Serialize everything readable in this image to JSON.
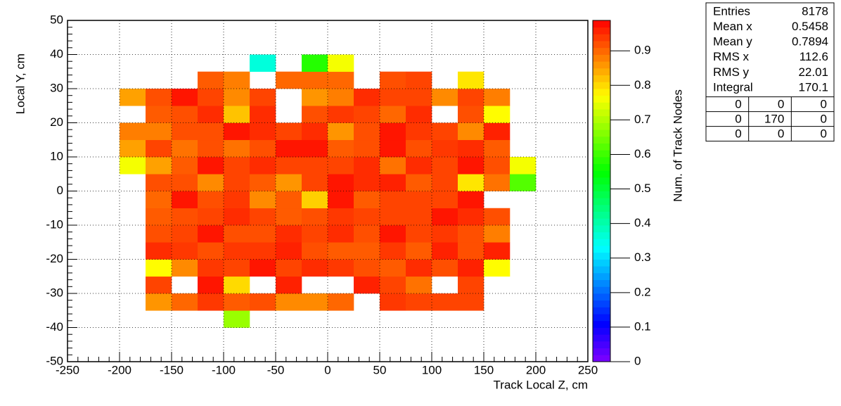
{
  "chart_data": {
    "type": "heatmap",
    "xlabel": "Track Local Z, cm",
    "ylabel": "Local Y, cm",
    "zlabel": "Num. of Track Nodes",
    "xlim": [
      -250,
      250
    ],
    "ylim": [
      -50,
      50
    ],
    "zlim": [
      0,
      0.988
    ],
    "xticks": [
      -250,
      -200,
      -150,
      -100,
      -50,
      0,
      50,
      100,
      150,
      200,
      250
    ],
    "yticks": [
      -50,
      -40,
      -30,
      -20,
      -10,
      0,
      10,
      20,
      30,
      40,
      50
    ],
    "zticks": [
      0,
      0.1,
      0.2,
      0.3,
      0.4,
      0.5,
      0.6,
      0.7,
      0.8,
      0.9
    ],
    "grid": true,
    "colorscale": [
      "#8000ff",
      "#0000ff",
      "#0080ff",
      "#00ffff",
      "#00ff80",
      "#00ff00",
      "#80ff00",
      "#ffff00",
      "#ff8000",
      "#ff0000"
    ],
    "xbins": [
      -200,
      -175,
      -150,
      -125,
      -100,
      -75,
      -50,
      -25,
      0,
      25,
      50,
      75,
      100,
      125,
      150,
      175,
      200
    ],
    "ybins": [
      -40,
      -35,
      -30,
      -25,
      -20,
      -15,
      -10,
      -5,
      0,
      5,
      10,
      15,
      20,
      25,
      30,
      35,
      40
    ],
    "z": [
      [
        null,
        null,
        null,
        null,
        0.68,
        null,
        null,
        null,
        null,
        null,
        null,
        null,
        null,
        null,
        null,
        null
      ],
      [
        null,
        0.86,
        0.9,
        0.94,
        0.91,
        0.92,
        0.87,
        0.87,
        0.9,
        null,
        0.94,
        0.93,
        0.93,
        0.93,
        null,
        null
      ],
      [
        null,
        0.93,
        null,
        0.97,
        0.8,
        null,
        0.96,
        null,
        null,
        0.96,
        0.93,
        0.89,
        null,
        0.93,
        null,
        null
      ],
      [
        null,
        0.77,
        0.87,
        0.94,
        0.93,
        0.97,
        0.93,
        0.95,
        0.94,
        0.92,
        0.91,
        0.95,
        0.92,
        0.96,
        0.77,
        null
      ],
      [
        null,
        0.95,
        0.94,
        0.92,
        0.94,
        0.94,
        0.96,
        0.92,
        0.91,
        0.91,
        0.94,
        0.91,
        0.96,
        0.92,
        0.96,
        null
      ],
      [
        null,
        0.92,
        0.93,
        0.97,
        0.92,
        0.92,
        0.95,
        0.93,
        0.95,
        0.92,
        0.97,
        0.93,
        0.94,
        0.92,
        0.88,
        null
      ],
      [
        null,
        0.91,
        0.92,
        0.93,
        0.95,
        0.93,
        0.91,
        0.92,
        0.94,
        0.93,
        0.93,
        0.93,
        0.97,
        0.95,
        0.92,
        null
      ],
      [
        null,
        0.9,
        0.97,
        0.92,
        0.94,
        0.87,
        0.91,
        0.81,
        0.97,
        0.91,
        0.93,
        0.93,
        0.93,
        0.97,
        null,
        null
      ],
      [
        null,
        0.92,
        0.92,
        0.87,
        0.93,
        0.91,
        0.86,
        0.93,
        0.97,
        0.95,
        0.96,
        0.91,
        0.93,
        0.79,
        0.89,
        0.62
      ],
      [
        0.76,
        0.85,
        0.91,
        0.97,
        0.93,
        0.95,
        0.93,
        0.93,
        0.93,
        0.95,
        0.89,
        0.95,
        0.93,
        0.97,
        0.92,
        0.76
      ],
      [
        0.85,
        0.93,
        0.89,
        0.92,
        0.89,
        0.92,
        0.97,
        0.97,
        0.91,
        0.92,
        0.97,
        0.92,
        0.94,
        0.95,
        0.91,
        null
      ],
      [
        0.88,
        0.88,
        0.92,
        0.92,
        0.97,
        0.95,
        0.93,
        0.95,
        0.86,
        0.92,
        0.97,
        0.94,
        0.93,
        0.87,
        0.96,
        null
      ],
      [
        null,
        0.91,
        0.92,
        0.95,
        0.82,
        0.95,
        null,
        0.92,
        0.94,
        0.93,
        0.9,
        0.95,
        null,
        0.92,
        0.77,
        null
      ],
      [
        0.85,
        0.92,
        0.97,
        0.93,
        0.87,
        0.93,
        null,
        0.86,
        0.88,
        0.95,
        0.93,
        0.93,
        0.87,
        0.93,
        0.88,
        null
      ],
      [
        null,
        null,
        null,
        0.91,
        0.88,
        null,
        0.9,
        0.9,
        0.9,
        null,
        0.92,
        0.93,
        null,
        0.79,
        null,
        null
      ],
      [
        null,
        null,
        null,
        null,
        null,
        0.36,
        null,
        0.58,
        0.76,
        null,
        null,
        null,
        null,
        null,
        null,
        null
      ]
    ]
  },
  "stats": {
    "rows": [
      [
        "Entries",
        8178
      ],
      [
        "Mean x",
        0.5458
      ],
      [
        "Mean y",
        0.7894
      ],
      [
        "RMS x",
        112.6
      ],
      [
        "RMS y",
        22.01
      ],
      [
        "Integral",
        170.1
      ]
    ],
    "table": [
      [
        0,
        0,
        0
      ],
      [
        0,
        170,
        0
      ],
      [
        0,
        0,
        0
      ]
    ]
  }
}
